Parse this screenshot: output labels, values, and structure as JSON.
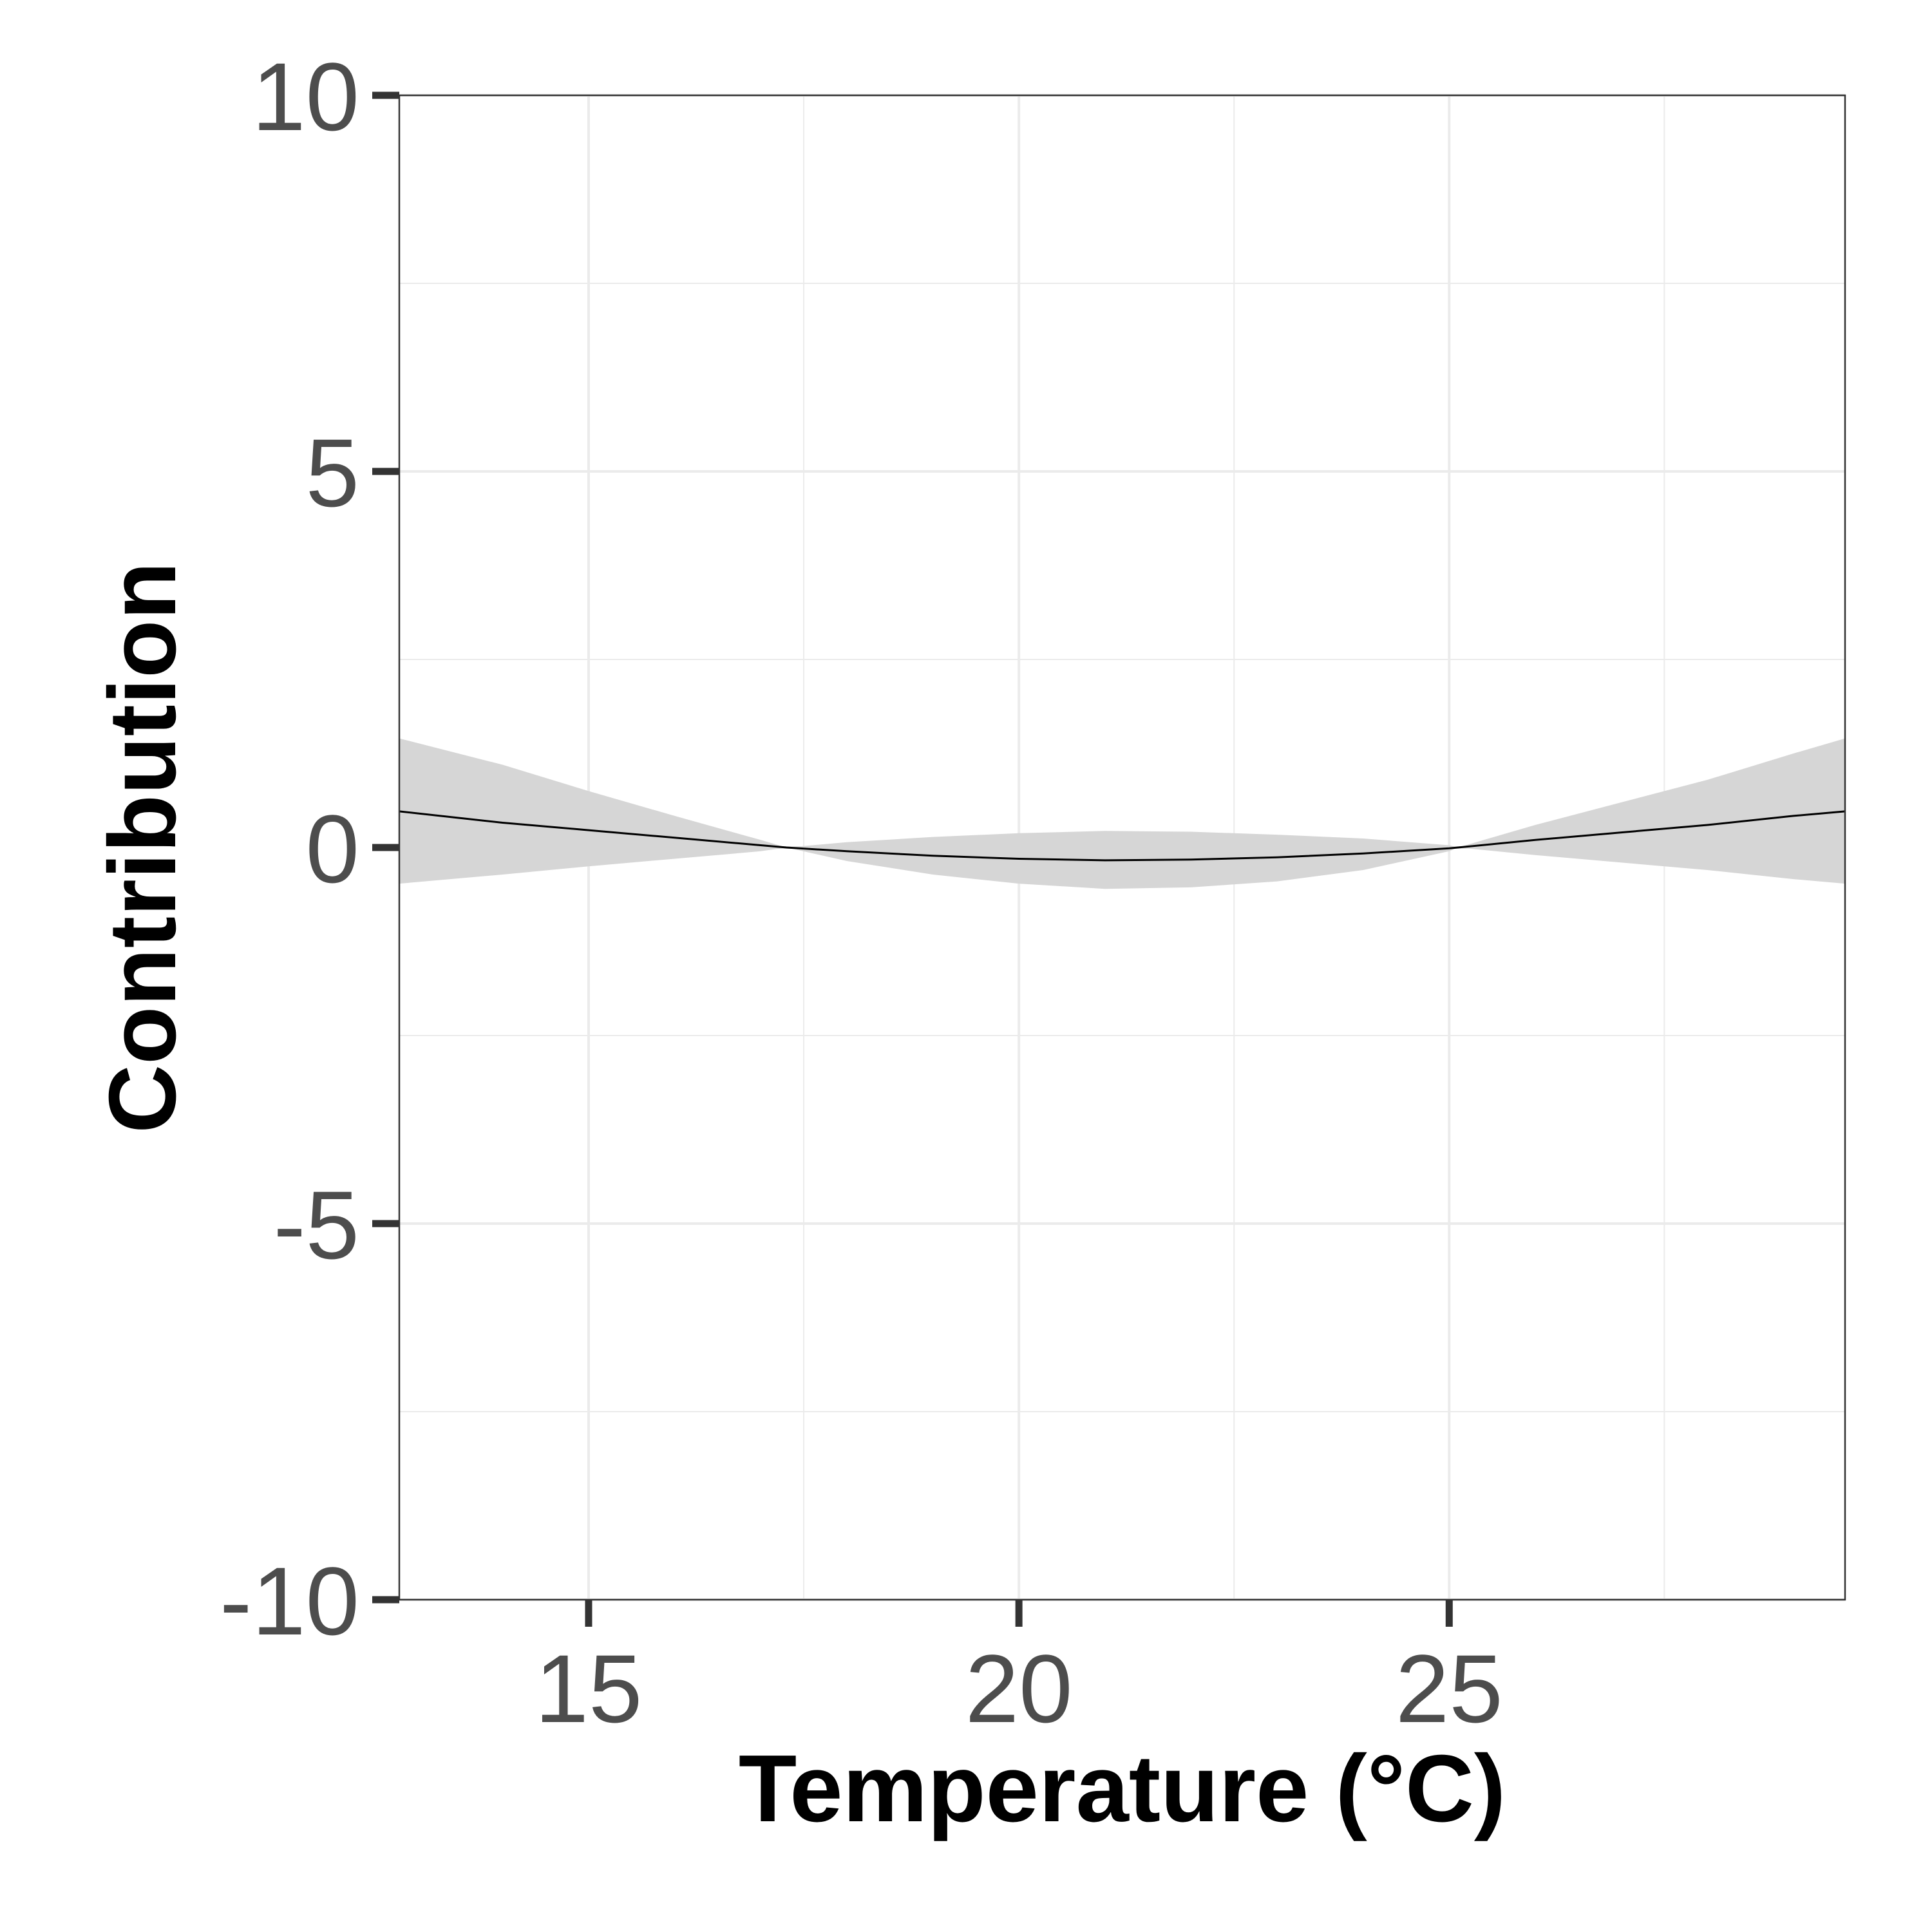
{
  "chart_data": {
    "type": "line",
    "title": "",
    "xlabel": "Temperature (°C)",
    "ylabel": "Contribution",
    "xlim": [
      12.8,
      29.6
    ],
    "ylim": [
      -10,
      10
    ],
    "x_ticks": [
      15,
      20,
      25
    ],
    "x_tick_labels": [
      "15",
      "20",
      "25"
    ],
    "y_ticks": [
      -10,
      -5,
      0,
      5,
      10
    ],
    "y_tick_labels": [
      "-10",
      "-5",
      "0",
      "5",
      "10"
    ],
    "grid": true,
    "legend": "none",
    "colors": {
      "line": "#000000",
      "ribbon": "#d6d6d6",
      "grid": "#ebebeb",
      "panel_border": "#333333",
      "tick_text": "#4d4d4d"
    },
    "series": [
      {
        "x": [
          12.8,
          14,
          15,
          16,
          17,
          17.3,
          18,
          19,
          20,
          21,
          22,
          23,
          24,
          25,
          25.1,
          26,
          27,
          28,
          29,
          29.6
        ],
        "y": [
          0.48,
          0.33,
          0.23,
          0.13,
          0.03,
          0.0,
          -0.05,
          -0.11,
          -0.15,
          -0.17,
          -0.16,
          -0.13,
          -0.08,
          -0.01,
          0.0,
          0.1,
          0.2,
          0.3,
          0.42,
          0.48
        ],
        "lower": [
          -0.48,
          -0.36,
          -0.25,
          -0.15,
          -0.05,
          0.0,
          -0.18,
          -0.36,
          -0.48,
          -0.55,
          -0.53,
          -0.45,
          -0.3,
          -0.05,
          0.0,
          -0.1,
          -0.2,
          -0.3,
          -0.42,
          -0.48
        ],
        "upper": [
          1.45,
          1.1,
          0.75,
          0.42,
          0.1,
          0.0,
          0.07,
          0.14,
          0.19,
          0.22,
          0.21,
          0.17,
          0.12,
          0.03,
          0.0,
          0.3,
          0.6,
          0.9,
          1.25,
          1.45
        ]
      }
    ]
  }
}
